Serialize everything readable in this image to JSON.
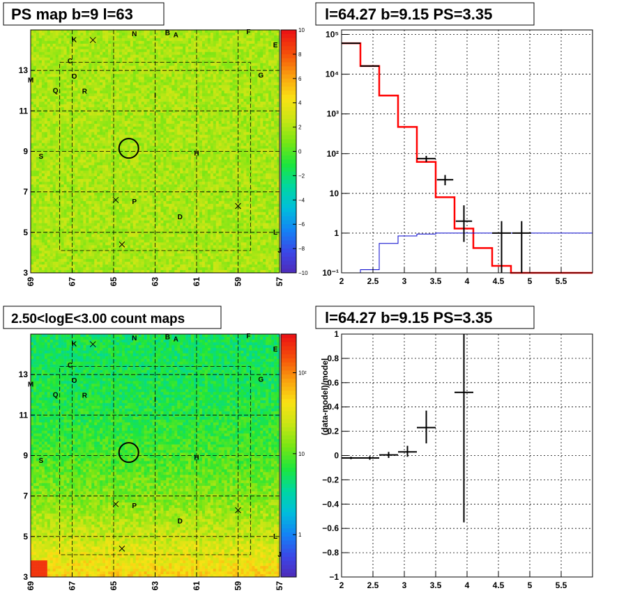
{
  "chart_data": [
    {
      "id": "ps-map",
      "type": "heatmap",
      "title": "PS map b=9 l=63",
      "x_ticks": [
        "69",
        "67",
        "65",
        "63",
        "61",
        "59",
        "57"
      ],
      "x_range": [
        69,
        57
      ],
      "y_ticks": [
        "3",
        "5",
        "7",
        "9",
        "11",
        "13"
      ],
      "y_range": [
        3,
        15
      ],
      "colorbar": {
        "ticks": [
          "10",
          "8",
          "6",
          "4",
          "2",
          "0",
          "−2",
          "−4",
          "−6",
          "−8",
          "−10"
        ],
        "range": [
          -10,
          10
        ]
      },
      "source_labels": [
        {
          "text": "N",
          "l": 64.0,
          "b": 14.8
        },
        {
          "text": "B",
          "l": 62.4,
          "b": 14.85
        },
        {
          "text": "A",
          "l": 62.0,
          "b": 14.75
        },
        {
          "text": "F",
          "l": 58.5,
          "b": 14.9
        },
        {
          "text": "K",
          "l": 66.9,
          "b": 14.5
        },
        {
          "text": "E",
          "l": 57.2,
          "b": 14.25
        },
        {
          "text": "C",
          "l": 67.1,
          "b": 13.45
        },
        {
          "text": "M",
          "l": 69.0,
          "b": 12.5
        },
        {
          "text": "O",
          "l": 66.9,
          "b": 12.7
        },
        {
          "text": "G",
          "l": 57.9,
          "b": 12.75
        },
        {
          "text": "Q",
          "l": 67.8,
          "b": 12.0
        },
        {
          "text": "R",
          "l": 66.4,
          "b": 11.95
        },
        {
          "text": "I",
          "l": 63.0,
          "b": 11.75
        },
        {
          "text": "S",
          "l": 68.5,
          "b": 8.75
        },
        {
          "text": "H",
          "l": 61.0,
          "b": 8.9
        },
        {
          "text": "P",
          "l": 64.0,
          "b": 6.5
        },
        {
          "text": "D",
          "l": 61.8,
          "b": 5.75
        },
        {
          "text": "L",
          "l": 57.2,
          "b": 5.0
        },
        {
          "text": "J",
          "l": 57.0,
          "b": 4.1
        }
      ]
    },
    {
      "id": "spectrum",
      "type": "line",
      "title": "l=64.27 b=9.15 PS=3.35",
      "x_ticks": [
        "2",
        "2.5",
        "3",
        "3.5",
        "4",
        "4.5",
        "5",
        "5.5"
      ],
      "x_range": [
        2,
        6
      ],
      "y_scale": "log",
      "y_ticks": [
        "10⁻¹",
        "1",
        "10",
        "10²",
        "10³",
        "10⁴",
        "10⁵"
      ],
      "y_range": [
        0.1,
        130000
      ],
      "series": [
        {
          "color": "#ff0000",
          "step_edges": [
            2.0,
            2.3,
            2.6,
            2.9,
            3.2,
            3.5,
            3.8,
            4.1,
            4.4,
            4.7,
            5.0,
            6.0
          ],
          "values": [
            60000,
            16000,
            2900,
            470,
            62,
            8,
            1.3,
            0.42,
            0.15,
            0.1,
            0.1
          ]
        },
        {
          "color": "#0000cc",
          "step_edges": [
            2.0,
            2.3,
            2.6,
            2.9,
            3.2,
            3.5,
            3.8,
            4.1,
            4.4,
            4.7,
            5.0,
            6.0
          ],
          "values": [
            0.1,
            0.12,
            0.55,
            0.85,
            0.95,
            1.0,
            1.0,
            1.0,
            1.0,
            1.0,
            1.0
          ]
        },
        {
          "color": "#000000",
          "points": [
            {
              "x": 2.15,
              "y": 60000,
              "xerr": 0.15,
              "ylo": 58000,
              "yhi": 62000
            },
            {
              "x": 2.45,
              "y": 16000,
              "xerr": 0.15,
              "ylo": 15400,
              "yhi": 16600
            },
            {
              "x": 3.35,
              "y": 75,
              "xerr": 0.15,
              "ylo": 62,
              "yhi": 88
            },
            {
              "x": 3.65,
              "y": 22,
              "xerr": 0.13,
              "ylo": 16,
              "yhi": 29
            },
            {
              "x": 3.95,
              "y": 2,
              "xerr": 0.13,
              "ylo": 0.6,
              "yhi": 5
            },
            {
              "x": 4.55,
              "y": 1,
              "xerr": 0.15,
              "ylo": 0.1,
              "yhi": 2
            },
            {
              "x": 4.87,
              "y": 1,
              "xerr": 0.15,
              "ylo": 0.1,
              "yhi": 2
            }
          ]
        }
      ]
    },
    {
      "id": "count-map",
      "type": "heatmap",
      "title": "2.50<logE<3.00 count maps",
      "x_ticks": [
        "69",
        "67",
        "65",
        "63",
        "61",
        "59",
        "57"
      ],
      "x_range": [
        69,
        57
      ],
      "y_ticks": [
        "3",
        "5",
        "7",
        "9",
        "11",
        "13"
      ],
      "y_range": [
        3,
        15
      ],
      "colorbar": {
        "ticks": [
          "10²",
          "10",
          "1"
        ],
        "scale": "log",
        "range": [
          0.3,
          300
        ]
      }
    },
    {
      "id": "residuals",
      "type": "scatter",
      "title": "l=64.27 b=9.15 PS=3.35",
      "ylabel": "(data-model)/model",
      "x_ticks": [
        "2",
        "2.5",
        "3",
        "3.5",
        "4",
        "4.5",
        "5",
        "5.5"
      ],
      "x_range": [
        2,
        6
      ],
      "y_ticks": [
        "1",
        "0.8",
        "0.6",
        "0.4",
        "0.2",
        "0",
        "−0.2",
        "−0.4",
        "−0.6",
        "−0.8",
        "−1"
      ],
      "y_range": [
        -1,
        1
      ],
      "points": [
        {
          "x": 2.15,
          "y": -0.02,
          "xerr": 0.15,
          "ylo": -0.03,
          "yhi": -0.01
        },
        {
          "x": 2.45,
          "y": -0.02,
          "xerr": 0.15,
          "ylo": -0.035,
          "yhi": -0.005
        },
        {
          "x": 2.75,
          "y": 0.005,
          "xerr": 0.15,
          "ylo": -0.02,
          "yhi": 0.03
        },
        {
          "x": 3.05,
          "y": 0.03,
          "xerr": 0.15,
          "ylo": -0.01,
          "yhi": 0.08
        },
        {
          "x": 3.35,
          "y": 0.23,
          "xerr": 0.15,
          "ylo": 0.1,
          "yhi": 0.37
        },
        {
          "x": 3.95,
          "y": 0.52,
          "xerr": 0.15,
          "ylo": -0.55,
          "yhi": 1.0
        }
      ]
    }
  ]
}
